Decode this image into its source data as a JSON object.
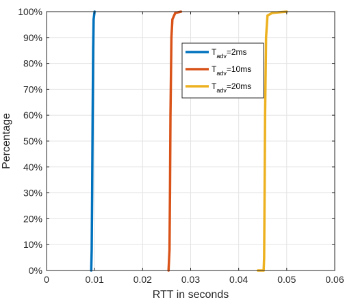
{
  "chart_data": {
    "type": "line",
    "title": "",
    "xlabel": "RTT in seconds",
    "ylabel": "Percentage",
    "xlim": [
      0,
      0.06
    ],
    "ylim": [
      0,
      100
    ],
    "x_ticks": [
      0,
      0.01,
      0.02,
      0.03,
      0.04,
      0.05,
      0.06
    ],
    "x_tick_labels": [
      "0",
      "0.01",
      "0.02",
      "0.03",
      "0.04",
      "0.05",
      "0.06"
    ],
    "y_ticks": [
      0,
      10,
      20,
      30,
      40,
      50,
      60,
      70,
      80,
      90,
      100
    ],
    "y_tick_labels": [
      "0%",
      "10%",
      "20%",
      "30%",
      "40%",
      "50%",
      "60%",
      "70%",
      "80%",
      "90%",
      "100%"
    ],
    "grid": true,
    "legend_position": "top-right",
    "series": [
      {
        "name": "T_adv=2ms",
        "legend_main": "T",
        "legend_sub": "adv",
        "legend_suffix": "=2ms",
        "color": "#0072BD",
        "x": [
          0.0093,
          0.0094,
          0.0095,
          0.0096,
          0.0097,
          0.0098,
          0.01
        ],
        "y": [
          0,
          8,
          30,
          60,
          85,
          97,
          100
        ]
      },
      {
        "name": "T_adv=10ms",
        "legend_main": "T",
        "legend_sub": "adv",
        "legend_suffix": "=10ms",
        "color": "#D95319",
        "x": [
          0.0254,
          0.0256,
          0.0257,
          0.0258,
          0.026,
          0.0262,
          0.0268,
          0.028
        ],
        "y": [
          0,
          8,
          30,
          60,
          90,
          97,
          99.5,
          100
        ]
      },
      {
        "name": "T_adv=20ms",
        "legend_main": "T",
        "legend_sub": "adv",
        "legend_suffix": "=20ms",
        "color": "#EDB120",
        "x": [
          0.044,
          0.0452,
          0.0453,
          0.0454,
          0.0455,
          0.0457,
          0.046,
          0.047,
          0.05
        ],
        "y": [
          0,
          0,
          5,
          30,
          60,
          90,
          98.5,
          99.5,
          100
        ]
      }
    ]
  }
}
